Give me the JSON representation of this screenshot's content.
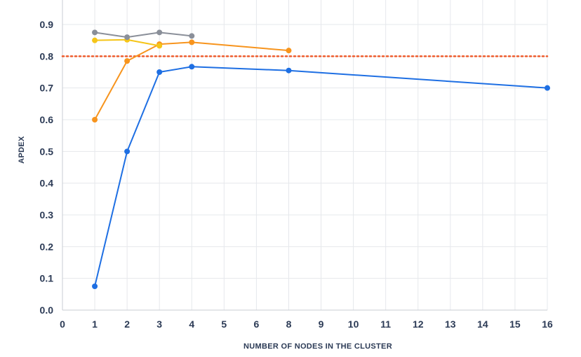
{
  "chart_data": {
    "type": "line",
    "title": "",
    "xlabel": "NUMBER OF NODES IN THE CLUSTER",
    "ylabel": "APDEX",
    "x_categories": [
      "0",
      "1",
      "2",
      "3",
      "4",
      "5",
      "6",
      "8",
      "9",
      "10",
      "11",
      "12",
      "13",
      "14",
      "15",
      "16"
    ],
    "y_ticks": [
      "0.0",
      "0.1",
      "0.2",
      "0.3",
      "0.4",
      "0.5",
      "0.6",
      "0.7",
      "0.8",
      "0.9"
    ],
    "ylim": [
      0,
      0.9
    ],
    "grid": true,
    "legend": "none",
    "threshold": {
      "y": 0.8,
      "color": "#ee5a2a",
      "style": "dotted"
    },
    "series": [
      {
        "color": "#1e6fe3",
        "points": [
          [
            "1",
            0.075
          ],
          [
            "2",
            0.5
          ],
          [
            "3",
            0.75
          ],
          [
            "4",
            0.767
          ],
          [
            "8",
            0.755
          ],
          [
            "16",
            0.7
          ]
        ]
      },
      {
        "color": "#f7941d",
        "points": [
          [
            "1",
            0.6
          ],
          [
            "2",
            0.785
          ],
          [
            "3",
            0.838
          ],
          [
            "4",
            0.844
          ],
          [
            "8",
            0.818
          ]
        ]
      },
      {
        "color": "#f5c518",
        "points": [
          [
            "1",
            0.85
          ],
          [
            "2",
            0.852
          ],
          [
            "3",
            0.833
          ]
        ]
      },
      {
        "color": "#8a8f99",
        "points": [
          [
            "1",
            0.875
          ],
          [
            "2",
            0.86
          ],
          [
            "3",
            0.875
          ],
          [
            "4",
            0.864
          ]
        ]
      }
    ]
  }
}
